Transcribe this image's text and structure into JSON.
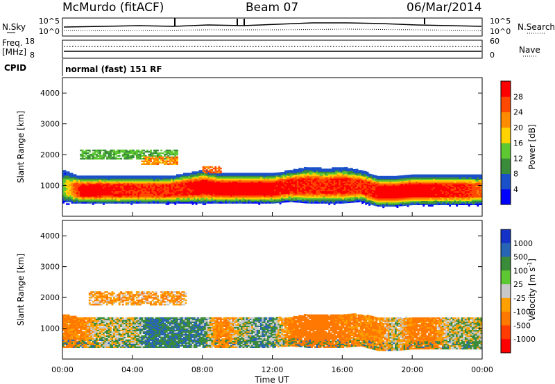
{
  "header": {
    "station": "McMurdo (fitACF)",
    "beam": "Beam 07",
    "date": "06/Mar/2014"
  },
  "status_panel": {
    "left_labels": {
      "nsky": "N.Sky",
      "freq": "Freq.",
      "freq_unit": "[MHz]",
      "cpid": "CPID"
    },
    "right_labels": {
      "nsearch": "N.Search",
      "nave": "Nave"
    },
    "nsky_ticks": [
      "10^5",
      "10^0"
    ],
    "freq_ticks": [
      "18",
      "8"
    ],
    "nave_ticks": [
      "60",
      "0"
    ],
    "nsearch_ticks": [
      "10^5",
      "10^0"
    ],
    "cpid_text": "normal (fast) 151 RF"
  },
  "colors": {
    "power": [
      "#0000ff",
      "#1a50c8",
      "#3a8c3a",
      "#5ec832",
      "#ffd200",
      "#ff8c00",
      "#ff4800",
      "#ff0000"
    ],
    "velocity": [
      "#1432c8",
      "#2864b4",
      "#3a8c3a",
      "#5ec832",
      "#c8c8c8",
      "#ffa000",
      "#ff7800",
      "#ff3c00",
      "#ff0000"
    ]
  },
  "chart_data": [
    {
      "type": "heatmap",
      "name": "power",
      "xlabel": "",
      "ylabel": "Slant Range [km]",
      "ylim": [
        0,
        4500
      ],
      "yticks": [
        "1000",
        "2000",
        "3000",
        "4000"
      ],
      "colorbar_label": "Power [dB]",
      "colorbar_ticks": [
        "4",
        "8",
        "12",
        "16",
        "20",
        "24",
        "28"
      ],
      "colorbar_range": [
        0,
        32
      ],
      "time_hours": [
        0,
        1,
        2,
        3,
        4,
        5,
        6,
        7,
        8,
        9,
        10,
        11,
        12,
        13,
        14,
        15,
        16,
        17,
        18,
        19,
        20,
        21,
        22,
        23,
        24
      ],
      "layer_low_km": [
        450,
        450,
        450,
        450,
        450,
        450,
        450,
        450,
        450,
        450,
        450,
        450,
        450,
        500,
        450,
        450,
        450,
        500,
        350,
        350,
        400,
        400,
        400,
        400,
        400
      ],
      "layer_high_km": [
        1400,
        1200,
        1200,
        1200,
        1200,
        1200,
        1200,
        1300,
        1400,
        1300,
        1300,
        1300,
        1300,
        1400,
        1500,
        1450,
        1500,
        1400,
        1200,
        1200,
        1250,
        1250,
        1250,
        1250,
        1250
      ],
      "core_power_db": [
        14,
        30,
        30,
        29,
        28,
        28,
        28,
        29,
        30,
        30,
        30,
        30,
        30,
        29,
        28,
        28,
        29,
        27,
        30,
        30,
        30,
        30,
        29,
        28,
        24
      ],
      "upper_echo_2000km": {
        "from_hour": 1.0,
        "to_hour": 6.5,
        "power_db": 12
      },
      "upper_echo_1800km": {
        "from_hour": 4.5,
        "to_hour": 6.5,
        "power_db": 22
      },
      "upper_echo_1500km": {
        "from_hour": 8.0,
        "to_hour": 9.0,
        "power_db": 24
      }
    },
    {
      "type": "heatmap",
      "name": "velocity",
      "xlabel": "Time UT",
      "ylabel": "Slant Range [km]",
      "ylim": [
        0,
        4500
      ],
      "yticks": [
        "1000",
        "2000",
        "3000",
        "4000"
      ],
      "xticks": [
        "00:00",
        "04:00",
        "08:00",
        "12:00",
        "16:00",
        "20:00",
        "00:00"
      ],
      "colorbar_label": "Velocity [m s",
      "colorbar_label_sup": "-1",
      "colorbar_label_end": "]",
      "colorbar_ticks": [
        "1000",
        "500",
        "100",
        "25",
        "-25",
        "-100",
        "-500",
        "-1000"
      ],
      "time_hours": [
        0,
        1,
        2,
        3,
        4,
        5,
        6,
        7,
        8,
        9,
        10,
        11,
        12,
        13,
        14,
        15,
        16,
        17,
        18,
        19,
        20,
        21,
        22,
        23,
        24
      ],
      "layer_low_km": [
        450,
        450,
        450,
        450,
        450,
        450,
        450,
        450,
        450,
        450,
        450,
        450,
        450,
        500,
        450,
        450,
        450,
        500,
        350,
        350,
        400,
        400,
        400,
        400,
        400
      ],
      "layer_high_km": [
        1400,
        1300,
        1300,
        1300,
        1300,
        1300,
        1300,
        1300,
        1300,
        1300,
        1300,
        1300,
        1300,
        1300,
        1400,
        1400,
        1400,
        1400,
        1300,
        1300,
        1300,
        1300,
        1300,
        1300,
        1300
      ],
      "dominant_velocity_ms": [
        -150,
        -120,
        0,
        0,
        0,
        120,
        100,
        80,
        80,
        -150,
        0,
        60,
        50,
        -150,
        -200,
        -200,
        -150,
        -120,
        -120,
        0,
        -150,
        -150,
        0,
        0,
        0
      ],
      "upper_echo_2000km": {
        "from_hour": 1.5,
        "to_hour": 7.0,
        "velocity_ms": -80
      }
    }
  ]
}
